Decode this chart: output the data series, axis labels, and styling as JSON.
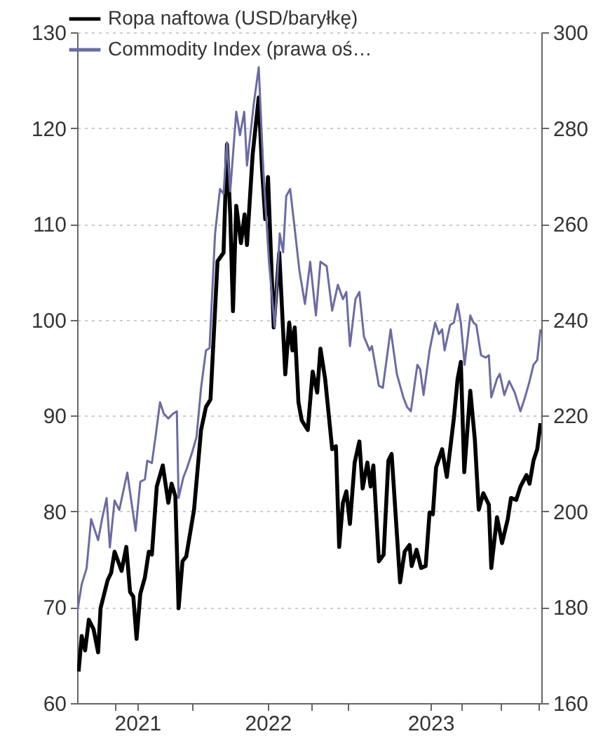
{
  "chart_data": {
    "type": "line",
    "xlim": [
      2020.83,
      2023.68
    ],
    "xticks": [
      {
        "value": 2021.06,
        "label": null
      },
      {
        "value": 2021.2,
        "label": "2021"
      },
      {
        "value": 2021.54,
        "label": null
      },
      {
        "value": 2022.0,
        "label": "2022"
      },
      {
        "value": 2022.27,
        "label": null
      },
      {
        "value": 2022.49,
        "label": null
      },
      {
        "value": 2023.0,
        "label": "2023"
      },
      {
        "value": 2023.19,
        "label": null
      },
      {
        "value": 2023.43,
        "label": null
      },
      {
        "value": 2023.66,
        "label": null
      }
    ],
    "ylim": [
      60,
      130
    ],
    "yticks": [
      60,
      70,
      80,
      90,
      100,
      110,
      120,
      130
    ],
    "y2lim": [
      160,
      300
    ],
    "y2ticks": [
      160,
      180,
      200,
      220,
      240,
      260,
      280,
      300
    ],
    "grid": "y",
    "legend": "top left",
    "series": [
      {
        "name": "Ropa naftowa (USD/baryłkę)",
        "color": "#000000",
        "x": [
          2020.839,
          2020.858,
          2020.879,
          2020.902,
          2020.931,
          2020.959,
          2020.974,
          2021.017,
          2021.039,
          2021.06,
          2021.103,
          2021.132,
          2021.155,
          2021.175,
          2021.195,
          2021.218,
          2021.246,
          2021.27,
          2021.289,
          2021.319,
          2021.356,
          2021.39,
          2021.41,
          2021.433,
          2021.453,
          2021.477,
          2021.5,
          2021.548,
          2021.591,
          2021.621,
          2021.649,
          2021.692,
          2021.729,
          2021.75,
          2021.77,
          2021.787,
          2021.807,
          2021.836,
          2021.858,
          2021.873,
          2021.908,
          2021.945,
          2021.965,
          2021.985,
          2022.002,
          2022.037,
          2022.071,
          2022.108,
          2022.132,
          2022.152,
          2022.166,
          2022.189,
          2022.209,
          2022.246,
          2022.276,
          2022.304,
          2022.324,
          2022.353,
          2022.396,
          2022.419,
          2022.439,
          2022.462,
          2022.483,
          2022.505,
          2022.534,
          2022.563,
          2022.583,
          2022.612,
          2022.632,
          2022.649,
          2022.683,
          2022.712,
          2022.741,
          2022.761,
          2022.813,
          2022.841,
          2022.871,
          2022.884,
          2022.914,
          2022.942,
          2022.97,
          2022.994,
          2023.014,
          2023.034,
          2023.071,
          2023.1,
          2023.143,
          2023.166,
          2023.186,
          2023.207,
          2023.244,
          2023.272,
          2023.296,
          2023.324,
          2023.358,
          2023.373,
          2023.408,
          2023.439,
          2023.474,
          2023.494,
          2023.526,
          2023.552,
          2023.589,
          2023.608,
          2023.632,
          2023.655,
          2023.675
        ],
        "values": [
          63.3,
          67.0,
          65.5,
          68.7,
          67.7,
          65.3,
          69.9,
          72.8,
          73.6,
          75.8,
          73.8,
          76.3,
          71.6,
          71.1,
          66.7,
          71.4,
          73.1,
          75.8,
          75.5,
          82.6,
          84.8,
          80.9,
          82.9,
          81.6,
          69.9,
          74.8,
          75.3,
          80.2,
          88.5,
          90.9,
          91.7,
          106.1,
          107.0,
          118.3,
          111.0,
          100.9,
          111.9,
          108.0,
          111.0,
          107.8,
          117.3,
          123.2,
          115.8,
          110.5,
          114.9,
          99.2,
          107.0,
          94.3,
          99.7,
          96.8,
          99.2,
          91.4,
          89.5,
          88.5,
          94.6,
          92.4,
          97.0,
          93.8,
          86.5,
          86.8,
          76.3,
          80.9,
          82.1,
          78.7,
          85.1,
          87.3,
          82.4,
          85.1,
          82.6,
          84.8,
          74.8,
          75.5,
          85.3,
          86.0,
          72.6,
          75.8,
          76.5,
          74.3,
          76.0,
          74.1,
          74.3,
          79.9,
          79.7,
          84.6,
          86.5,
          83.6,
          89.7,
          93.8,
          95.6,
          84.1,
          92.6,
          87.5,
          80.2,
          81.9,
          80.7,
          74.1,
          79.4,
          76.7,
          79.2,
          81.4,
          81.2,
          82.6,
          83.8,
          82.9,
          85.3,
          86.5,
          89.2
        ]
      },
      {
        "name": "Commodity Index (prawa oś…",
        "color": "#6b6ba3",
        "axis": "y2",
        "x": [
          2020.83,
          2020.858,
          2020.888,
          2020.916,
          2020.959,
          2020.983,
          2021.011,
          2021.031,
          2021.06,
          2021.089,
          2021.138,
          2021.16,
          2021.189,
          2021.218,
          2021.246,
          2021.261,
          2021.289,
          2021.313,
          2021.339,
          2021.362,
          2021.39,
          2021.419,
          2021.442,
          2021.453,
          2021.483,
          2021.505,
          2021.534,
          2021.563,
          2021.591,
          2021.621,
          2021.643,
          2021.677,
          2021.707,
          2021.729,
          2021.75,
          2021.77,
          2021.807,
          2021.83,
          2021.856,
          2021.873,
          2021.914,
          2021.945,
          2021.974,
          2022.008,
          2022.043,
          2022.074,
          2022.095,
          2022.114,
          2022.138,
          2022.166,
          2022.195,
          2022.229,
          2022.261,
          2022.296,
          2022.324,
          2022.362,
          2022.396,
          2022.431,
          2022.462,
          2022.483,
          2022.505,
          2022.539,
          2022.563,
          2022.591,
          2022.626,
          2022.64,
          2022.683,
          2022.707,
          2022.755,
          2022.793,
          2022.833,
          2022.856,
          2022.879,
          2022.919,
          2022.936,
          2022.957,
          2022.994,
          2023.028,
          2023.052,
          2023.071,
          2023.086,
          2023.12,
          2023.143,
          2023.166,
          2023.186,
          2023.209,
          2023.244,
          2023.264,
          2023.281,
          2023.31,
          2023.339,
          2023.358,
          2023.373,
          2023.408,
          2023.425,
          2023.453,
          2023.483,
          2023.517,
          2023.552,
          2023.58,
          2023.608,
          2023.632,
          2023.655,
          2023.675
        ],
        "values": [
          178.9,
          184.8,
          188.1,
          198.4,
          194.0,
          198.4,
          202.8,
          192.5,
          202.3,
          200.3,
          208.1,
          202.8,
          196.0,
          206.2,
          206.7,
          210.6,
          210.1,
          216.0,
          222.8,
          220.4,
          219.4,
          220.4,
          220.9,
          202.8,
          207.2,
          209.1,
          212.1,
          215.5,
          225.8,
          233.6,
          234.1,
          258.0,
          267.3,
          266.3,
          277.0,
          266.8,
          283.4,
          278.5,
          283.4,
          272.2,
          284.9,
          292.7,
          270.7,
          252.1,
          238.5,
          258.0,
          254.1,
          265.8,
          267.3,
          259.0,
          250.2,
          243.3,
          252.1,
          240.9,
          252.1,
          251.2,
          241.9,
          247.3,
          244.3,
          245.8,
          234.5,
          244.3,
          245.8,
          236.5,
          233.6,
          234.5,
          226.2,
          225.8,
          238.0,
          228.7,
          223.8,
          221.8,
          220.9,
          230.6,
          229.7,
          224.3,
          233.6,
          239.4,
          237.0,
          238.0,
          233.6,
          238.9,
          239.4,
          243.3,
          239.4,
          230.6,
          240.9,
          239.4,
          238.9,
          232.6,
          232.1,
          232.6,
          223.8,
          227.7,
          228.7,
          224.3,
          227.2,
          224.8,
          220.9,
          223.8,
          227.2,
          230.6,
          231.6,
          238.0
        ]
      }
    ]
  }
}
